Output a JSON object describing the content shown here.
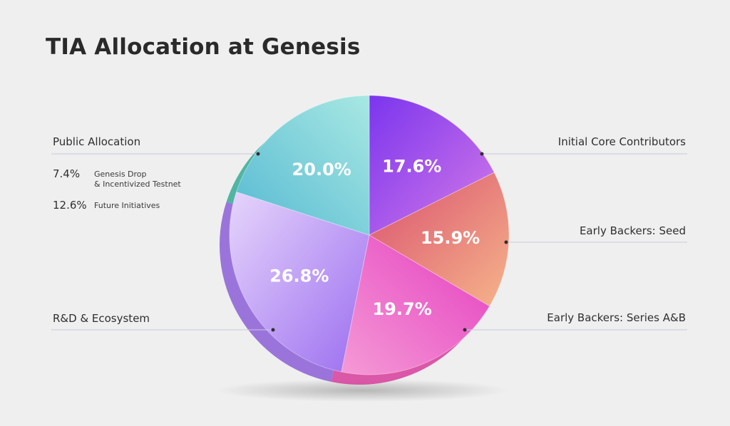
{
  "chart_data": {
    "type": "pie",
    "title": "TIA Allocation at Genesis",
    "slices": [
      {
        "name": "Initial Core Contributors",
        "value": 17.6,
        "label": "17.6%",
        "color": "#8a3cf0"
      },
      {
        "name": "Early Backers: Seed",
        "value": 15.9,
        "label": "15.9%",
        "color": "#e0607a"
      },
      {
        "name": "Early Backers: Series A&B",
        "value": 19.7,
        "label": "19.7%",
        "color": "#e94ec6"
      },
      {
        "name": "R&D & Ecosystem",
        "value": 26.8,
        "label": "26.8%",
        "color": "#b88cf2"
      },
      {
        "name": "Public Allocation",
        "value": 20.0,
        "label": "20.0%",
        "color": "#6cc8d6"
      }
    ],
    "public_allocation_breakdown": [
      {
        "value": "7.4%",
        "line1": "Genesis Drop",
        "line2": "& Incentivized Testnet"
      },
      {
        "value": "12.6%",
        "line1": "Future Initiatives",
        "line2": ""
      }
    ]
  }
}
